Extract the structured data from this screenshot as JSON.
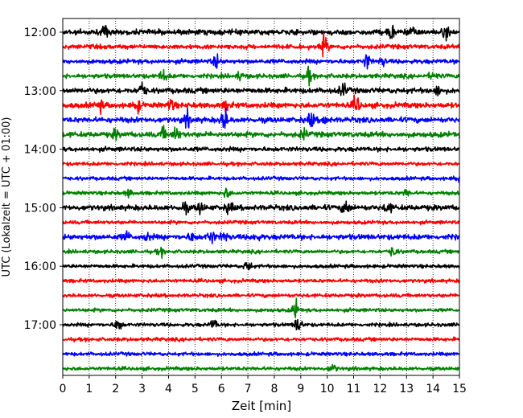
{
  "chart_data": {
    "type": "line",
    "title": "",
    "xlabel": "Zeit  [min]",
    "ylabel": "UTC (Lokalzeit = UTC + 01:00)",
    "xlim": [
      0,
      15
    ],
    "x_ticks": [
      0,
      1,
      2,
      3,
      4,
      5,
      6,
      7,
      8,
      9,
      10,
      11,
      12,
      13,
      14,
      15
    ],
    "grid": {
      "vertical": true,
      "horizontal": false,
      "style": "dotted"
    },
    "line_minutes": 15,
    "y_tick_labels": [
      "12:00",
      "13:00",
      "14:00",
      "15:00",
      "16:00",
      "17:00"
    ],
    "color_cycle": [
      "#000000",
      "#ff0000",
      "#0000ff",
      "#008000"
    ],
    "series": [
      {
        "start": "12:00",
        "color": "#000000",
        "amp": 3,
        "events": [
          [
            1.6,
            6
          ],
          [
            12.4,
            9
          ],
          [
            13.2,
            6
          ],
          [
            14.5,
            6
          ]
        ]
      },
      {
        "start": "12:15",
        "color": "#ff0000",
        "amp": 2.5,
        "events": [
          [
            9.9,
            11
          ]
        ]
      },
      {
        "start": "12:30",
        "color": "#0000ff",
        "amp": 2.5,
        "events": [
          [
            5.8,
            7
          ],
          [
            11.5,
            8
          ],
          [
            12.1,
            4
          ]
        ]
      },
      {
        "start": "12:45",
        "color": "#008000",
        "amp": 2.5,
        "events": [
          [
            3.8,
            6
          ],
          [
            6.7,
            4
          ],
          [
            9.3,
            8
          ],
          [
            14.0,
            4
          ]
        ]
      },
      {
        "start": "13:00",
        "color": "#000000",
        "amp": 3,
        "events": [
          [
            3.0,
            9
          ],
          [
            10.6,
            7
          ],
          [
            14.2,
            5
          ]
        ]
      },
      {
        "start": "13:15",
        "color": "#ff0000",
        "amp": 3,
        "events": [
          [
            1.4,
            6
          ],
          [
            2.8,
            8
          ],
          [
            4.1,
            6
          ],
          [
            6.2,
            5
          ],
          [
            11.1,
            10
          ]
        ]
      },
      {
        "start": "13:30",
        "color": "#0000ff",
        "amp": 3,
        "events": [
          [
            4.7,
            8
          ],
          [
            6.1,
            13
          ],
          [
            9.4,
            8
          ],
          [
            9.9,
            5
          ]
        ]
      },
      {
        "start": "13:45",
        "color": "#008000",
        "amp": 3,
        "events": [
          [
            2.0,
            5
          ],
          [
            3.8,
            6
          ],
          [
            4.3,
            8
          ],
          [
            9.1,
            5
          ]
        ]
      },
      {
        "start": "14:00",
        "color": "#000000",
        "amp": 2.5,
        "events": []
      },
      {
        "start": "14:15",
        "color": "#ff0000",
        "amp": 2,
        "events": []
      },
      {
        "start": "14:30",
        "color": "#0000ff",
        "amp": 2,
        "events": [
          [
            14.9,
            4
          ]
        ]
      },
      {
        "start": "14:45",
        "color": "#008000",
        "amp": 2,
        "events": [
          [
            2.5,
            4
          ],
          [
            6.2,
            6
          ],
          [
            13.0,
            4
          ]
        ]
      },
      {
        "start": "15:00",
        "color": "#000000",
        "amp": 3,
        "events": [
          [
            4.6,
            6
          ],
          [
            5.2,
            6
          ],
          [
            6.3,
            6
          ],
          [
            10.7,
            9
          ],
          [
            12.3,
            6
          ]
        ]
      },
      {
        "start": "15:15",
        "color": "#ff0000",
        "amp": 2,
        "events": []
      },
      {
        "start": "15:30",
        "color": "#0000ff",
        "amp": 3,
        "events": [
          [
            2.4,
            5
          ],
          [
            3.2,
            4
          ],
          [
            4.9,
            5
          ],
          [
            5.6,
            8
          ],
          [
            6.1,
            5
          ],
          [
            7.3,
            4
          ]
        ]
      },
      {
        "start": "15:45",
        "color": "#008000",
        "amp": 2,
        "events": [
          [
            3.7,
            4
          ],
          [
            12.5,
            6
          ]
        ]
      },
      {
        "start": "16:00",
        "color": "#000000",
        "amp": 2,
        "events": [
          [
            7.0,
            7
          ]
        ]
      },
      {
        "start": "16:15",
        "color": "#ff0000",
        "amp": 2,
        "events": []
      },
      {
        "start": "16:30",
        "color": "#ff0000",
        "amp": 2,
        "events": []
      },
      {
        "start": "16:45",
        "color": "#008000",
        "amp": 2,
        "events": [
          [
            8.8,
            10
          ]
        ]
      },
      {
        "start": "17:00",
        "color": "#000000",
        "amp": 2,
        "events": [
          [
            2.1,
            8
          ],
          [
            5.7,
            6
          ],
          [
            8.9,
            10
          ]
        ]
      },
      {
        "start": "17:15",
        "color": "#ff0000",
        "amp": 2,
        "events": []
      },
      {
        "start": "17:30",
        "color": "#0000ff",
        "amp": 2,
        "events": []
      },
      {
        "start": "17:45",
        "color": "#008000",
        "amp": 2,
        "events": [
          [
            10.2,
            5
          ]
        ]
      }
    ]
  }
}
